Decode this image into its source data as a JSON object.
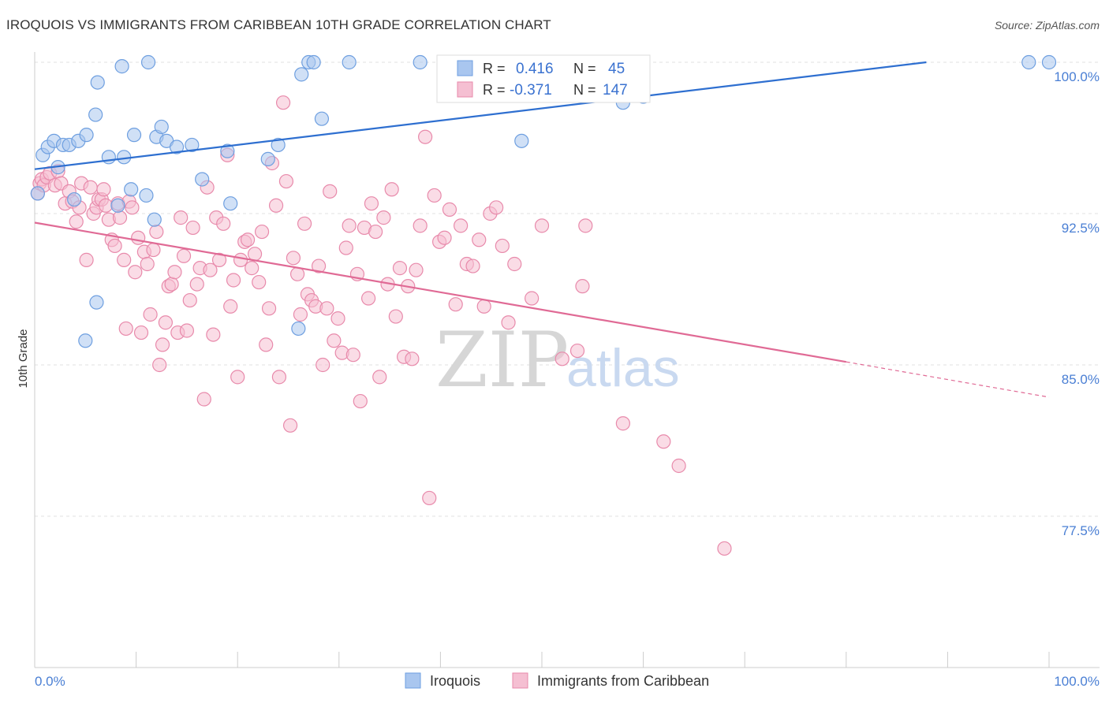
{
  "title": "IROQUOIS VS IMMIGRANTS FROM CARIBBEAN 10TH GRADE CORRELATION CHART",
  "source": "Source: ZipAtlas.com",
  "watermark": {
    "zip": "ZIP",
    "atlas": "atlas"
  },
  "legend_box": {
    "rows": [
      {
        "r_label": "R =",
        "r_value": "0.416",
        "n_label": "N =",
        "n_value": "45"
      },
      {
        "r_label": "R =",
        "r_value": "-0.371",
        "n_label": "N =",
        "n_value": "147"
      }
    ]
  },
  "bottom_legend": [
    "Iroquois",
    "Immigrants from Caribbean"
  ],
  "colors": {
    "blue_fill": "#a9c6ef",
    "blue_stroke": "#6e9fe0",
    "blue_line": "#2e6fd0",
    "pink_fill": "#f5bfd2",
    "pink_stroke": "#e88aab",
    "pink_line": "#e06a95",
    "tick_text": "#4a7fd4",
    "grid": "#e0e0e0"
  },
  "chart_data": {
    "type": "scatter",
    "title": "IROQUOIS VS IMMIGRANTS FROM CARIBBEAN 10TH GRADE CORRELATION CHART",
    "xlabel": "",
    "ylabel": "10th Grade",
    "x_tick_labels": [
      "0.0%",
      "100.0%"
    ],
    "y_tick_labels": [
      "100.0%",
      "92.5%",
      "85.0%",
      "77.5%"
    ],
    "y_ticks": [
      100.0,
      92.5,
      85.0,
      77.5
    ],
    "xlim": [
      0,
      100
    ],
    "ylim": [
      70.8,
      100.9
    ],
    "grid": "horizontal dashed",
    "legend_position": "top-center and bottom",
    "series": [
      {
        "name": "Iroquois",
        "R": 0.416,
        "N": 45,
        "trend": {
          "x0": 0,
          "y0": 94.7,
          "x1": 87.9,
          "y1": 100.0
        },
        "points": [
          [
            0.3,
            93.5
          ],
          [
            0.8,
            95.4
          ],
          [
            1.3,
            95.8
          ],
          [
            1.9,
            96.1
          ],
          [
            2.3,
            94.8
          ],
          [
            2.8,
            95.9
          ],
          [
            3.4,
            95.9
          ],
          [
            3.9,
            93.2
          ],
          [
            4.3,
            96.1
          ],
          [
            5.1,
            96.4
          ],
          [
            6.2,
            99.0
          ],
          [
            6.1,
            88.1
          ],
          [
            5.0,
            86.2
          ],
          [
            6.0,
            97.4
          ],
          [
            7.3,
            95.3
          ],
          [
            8.2,
            92.9
          ],
          [
            8.6,
            99.8
          ],
          [
            8.8,
            95.3
          ],
          [
            9.5,
            93.7
          ],
          [
            9.8,
            96.4
          ],
          [
            11.0,
            93.4
          ],
          [
            11.2,
            100.0
          ],
          [
            11.8,
            92.2
          ],
          [
            12.0,
            96.3
          ],
          [
            12.5,
            96.8
          ],
          [
            13.0,
            96.1
          ],
          [
            14.0,
            95.8
          ],
          [
            15.5,
            95.9
          ],
          [
            16.5,
            94.2
          ],
          [
            19.0,
            95.6
          ],
          [
            19.3,
            93.0
          ],
          [
            23.0,
            95.2
          ],
          [
            24.0,
            95.9
          ],
          [
            26.0,
            86.8
          ],
          [
            26.3,
            99.4
          ],
          [
            27.0,
            100.0
          ],
          [
            27.5,
            100.0
          ],
          [
            28.3,
            97.2
          ],
          [
            31.0,
            100.0
          ],
          [
            38.0,
            100.0
          ],
          [
            48.0,
            96.1
          ],
          [
            58.0,
            98.0
          ],
          [
            60.0,
            98.3
          ],
          [
            98.0,
            100.0
          ],
          [
            100.0,
            100.0
          ]
        ]
      },
      {
        "name": "Immigrants from Caribbean",
        "R": -0.371,
        "N": 147,
        "trend": {
          "x0": 0,
          "y0": 92.05,
          "x1": 80.0,
          "y1": 85.15,
          "dash_to_x": 100.0,
          "dash_to_y": 83.4
        },
        "points": [
          [
            0.3,
            93.5
          ],
          [
            0.5,
            94.0
          ],
          [
            0.7,
            94.2
          ],
          [
            0.9,
            93.9
          ],
          [
            1.2,
            94.3
          ],
          [
            1.5,
            94.5
          ],
          [
            2.0,
            93.9
          ],
          [
            2.3,
            94.6
          ],
          [
            2.6,
            94.0
          ],
          [
            3.0,
            93.0
          ],
          [
            3.4,
            93.6
          ],
          [
            3.7,
            93.1
          ],
          [
            4.1,
            92.1
          ],
          [
            4.4,
            92.8
          ],
          [
            4.6,
            94.0
          ],
          [
            5.1,
            90.2
          ],
          [
            5.5,
            93.8
          ],
          [
            5.8,
            92.5
          ],
          [
            6.1,
            92.8
          ],
          [
            6.3,
            93.2
          ],
          [
            6.6,
            93.2
          ],
          [
            6.8,
            93.7
          ],
          [
            7.0,
            92.9
          ],
          [
            7.3,
            92.2
          ],
          [
            7.6,
            91.2
          ],
          [
            7.9,
            90.9
          ],
          [
            8.2,
            93.0
          ],
          [
            8.4,
            92.3
          ],
          [
            8.8,
            90.2
          ],
          [
            9.0,
            86.8
          ],
          [
            9.3,
            93.1
          ],
          [
            9.6,
            92.8
          ],
          [
            9.9,
            89.6
          ],
          [
            10.2,
            91.3
          ],
          [
            10.5,
            86.6
          ],
          [
            10.8,
            90.6
          ],
          [
            11.1,
            90.0
          ],
          [
            11.4,
            87.5
          ],
          [
            11.7,
            90.7
          ],
          [
            12.0,
            91.6
          ],
          [
            12.3,
            85.0
          ],
          [
            12.6,
            86.0
          ],
          [
            12.9,
            87.1
          ],
          [
            13.2,
            88.9
          ],
          [
            13.5,
            89.0
          ],
          [
            13.8,
            89.6
          ],
          [
            14.1,
            86.6
          ],
          [
            14.4,
            92.3
          ],
          [
            14.7,
            90.4
          ],
          [
            15.0,
            86.7
          ],
          [
            15.3,
            88.2
          ],
          [
            15.6,
            91.8
          ],
          [
            16.0,
            89.0
          ],
          [
            16.3,
            89.8
          ],
          [
            16.7,
            83.3
          ],
          [
            17.0,
            93.8
          ],
          [
            17.3,
            89.7
          ],
          [
            17.6,
            86.5
          ],
          [
            17.9,
            92.3
          ],
          [
            18.2,
            90.2
          ],
          [
            18.6,
            92.0
          ],
          [
            19.0,
            95.4
          ],
          [
            19.3,
            87.9
          ],
          [
            19.6,
            89.2
          ],
          [
            20.0,
            84.4
          ],
          [
            20.3,
            90.2
          ],
          [
            20.7,
            91.1
          ],
          [
            21.0,
            91.2
          ],
          [
            21.4,
            89.8
          ],
          [
            21.7,
            90.5
          ],
          [
            22.1,
            89.1
          ],
          [
            22.4,
            91.6
          ],
          [
            22.8,
            86.0
          ],
          [
            23.1,
            87.8
          ],
          [
            23.4,
            95.0
          ],
          [
            23.8,
            92.9
          ],
          [
            24.1,
            84.4
          ],
          [
            24.5,
            98.0
          ],
          [
            24.8,
            94.1
          ],
          [
            25.2,
            82.0
          ],
          [
            25.5,
            90.3
          ],
          [
            25.9,
            89.5
          ],
          [
            26.2,
            87.5
          ],
          [
            26.6,
            92.0
          ],
          [
            26.9,
            88.5
          ],
          [
            27.3,
            88.2
          ],
          [
            27.7,
            87.9
          ],
          [
            28.0,
            89.9
          ],
          [
            28.4,
            85.0
          ],
          [
            28.8,
            87.8
          ],
          [
            29.1,
            93.6
          ],
          [
            29.5,
            86.2
          ],
          [
            29.9,
            87.3
          ],
          [
            30.3,
            85.6
          ],
          [
            30.7,
            90.8
          ],
          [
            31.0,
            91.9
          ],
          [
            31.4,
            85.5
          ],
          [
            31.8,
            89.5
          ],
          [
            32.1,
            83.2
          ],
          [
            32.5,
            91.8
          ],
          [
            32.9,
            88.3
          ],
          [
            33.2,
            93.0
          ],
          [
            33.6,
            91.6
          ],
          [
            34.0,
            84.4
          ],
          [
            34.4,
            92.3
          ],
          [
            34.8,
            89.0
          ],
          [
            35.2,
            93.7
          ],
          [
            35.6,
            87.4
          ],
          [
            36.0,
            89.8
          ],
          [
            36.4,
            85.4
          ],
          [
            36.8,
            88.9
          ],
          [
            37.2,
            85.3
          ],
          [
            37.6,
            89.7
          ],
          [
            38.0,
            91.9
          ],
          [
            38.5,
            96.3
          ],
          [
            38.9,
            78.4
          ],
          [
            39.4,
            93.4
          ],
          [
            39.9,
            91.1
          ],
          [
            40.4,
            91.3
          ],
          [
            40.9,
            92.7
          ],
          [
            41.5,
            88.0
          ],
          [
            42.0,
            91.9
          ],
          [
            42.6,
            90.0
          ],
          [
            43.2,
            89.9
          ],
          [
            43.8,
            91.2
          ],
          [
            44.3,
            87.9
          ],
          [
            44.9,
            92.5
          ],
          [
            45.5,
            92.8
          ],
          [
            46.1,
            90.9
          ],
          [
            46.7,
            87.1
          ],
          [
            47.3,
            90.0
          ],
          [
            49.0,
            88.3
          ],
          [
            50.0,
            91.9
          ],
          [
            53.5,
            85.7
          ],
          [
            54.0,
            88.9
          ],
          [
            55.0,
            100.0
          ],
          [
            58.0,
            82.1
          ],
          [
            62.0,
            81.2
          ],
          [
            63.5,
            80.0
          ],
          [
            68.0,
            75.9
          ],
          [
            54.3,
            91.9
          ],
          [
            52.0,
            85.3
          ]
        ]
      }
    ]
  }
}
